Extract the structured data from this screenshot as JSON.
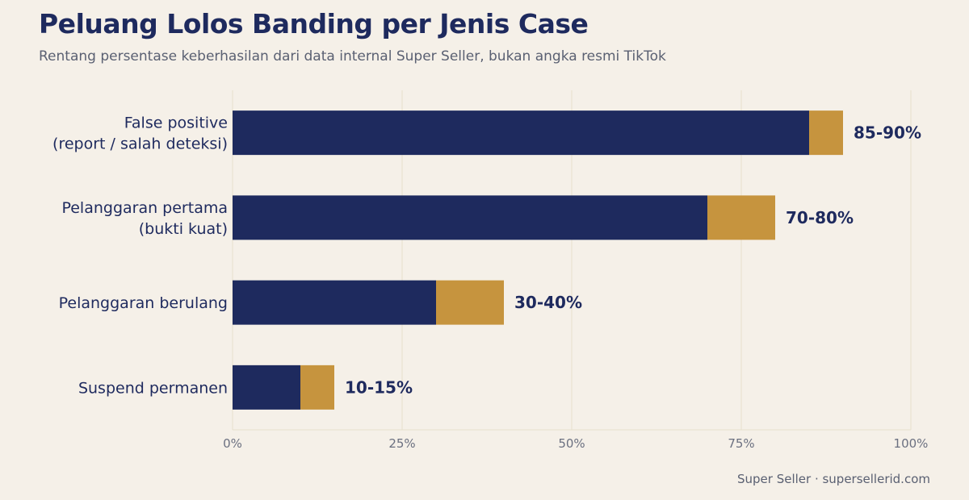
{
  "header": {
    "title": "Peluang Lolos Banding per Jenis Case",
    "subtitle": "Rentang persentase keberhasilan dari data internal Super Seller, bukan angka resmi TikTok"
  },
  "footer": {
    "credit": "Super Seller · supersellerid.com"
  },
  "colors": {
    "base": "#1e2a5e",
    "range": "#c6943e",
    "grid": "#e6dfcd",
    "background": "#f5f0e8"
  },
  "chart_data": {
    "type": "bar",
    "orientation": "horizontal",
    "stacked": true,
    "categories": [
      [
        "False positive",
        "(report / salah deteksi)"
      ],
      [
        "Pelanggaran pertama",
        "(bukti kuat)"
      ],
      [
        "Pelanggaran berulang"
      ],
      [
        "Suspend permanen"
      ]
    ],
    "series": [
      {
        "name": "",
        "values": [
          85,
          70,
          30,
          10
        ],
        "color": "#1e2a5e"
      },
      {
        "name": "",
        "values": [
          5,
          10,
          10,
          5
        ],
        "color": "#c6943e"
      }
    ],
    "value_labels": [
      "85-90%",
      "70-80%",
      "30-40%",
      "10-15%"
    ],
    "xlim": [
      0,
      100
    ],
    "x_ticks": [
      0,
      25,
      50,
      75,
      100
    ],
    "x_tick_labels": [
      "0%",
      "25%",
      "50%",
      "75%",
      "100%"
    ],
    "grid": true,
    "legend": "none"
  }
}
